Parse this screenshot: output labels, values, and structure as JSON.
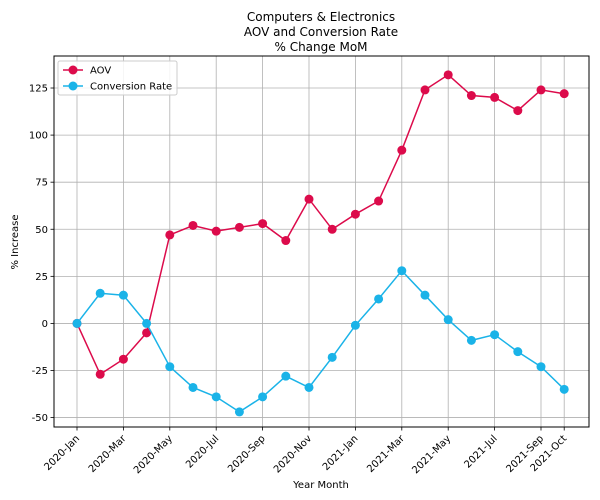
{
  "chart_data": {
    "type": "line",
    "title_lines": [
      "Computers & Electronics",
      "AOV and Conversion Rate",
      "% Change MoM"
    ],
    "xlabel": "Year Month",
    "ylabel": "% Increase",
    "ylim": [
      -55,
      142
    ],
    "yticks": [
      -50,
      -25,
      0,
      25,
      50,
      75,
      100,
      125
    ],
    "grid": true,
    "legend_placement": "top-left",
    "x": [
      "2020-Jan",
      "2020-Feb",
      "2020-Mar",
      "2020-Apr",
      "2020-May",
      "2020-Jun",
      "2020-Jul",
      "2020-Aug",
      "2020-Sep",
      "2020-Oct",
      "2020-Nov",
      "2020-Dec",
      "2021-Jan",
      "2021-Feb",
      "2021-Mar",
      "2021-Apr",
      "2021-May",
      "2021-Jun",
      "2021-Jul",
      "2021-Aug",
      "2021-Sep",
      "2021-Oct"
    ],
    "x_tick_labels": [
      {
        "index": 0,
        "label": "2020-Jan"
      },
      {
        "index": 2,
        "label": "2020-Mar"
      },
      {
        "index": 4,
        "label": "2020-May"
      },
      {
        "index": 6,
        "label": "2020-Jul"
      },
      {
        "index": 8,
        "label": "2020-Sep"
      },
      {
        "index": 10,
        "label": "2020-Nov"
      },
      {
        "index": 12,
        "label": "2021-Jan"
      },
      {
        "index": 14,
        "label": "2021-Mar"
      },
      {
        "index": 16,
        "label": "2021-May"
      },
      {
        "index": 18,
        "label": "2021-Jul"
      },
      {
        "index": 20,
        "label": "2021-Sep"
      },
      {
        "index": 21,
        "label": "2021-Oct"
      }
    ],
    "series": [
      {
        "name": "AOV",
        "color": "#dc0b4b",
        "values": [
          0,
          -27,
          -19,
          -5,
          47,
          52,
          49,
          51,
          53,
          44,
          66,
          50,
          58,
          65,
          92,
          124,
          132,
          121,
          120,
          113,
          124,
          122
        ]
      },
      {
        "name": "Conversion Rate",
        "color": "#1ab3e8",
        "values": [
          0,
          16,
          15,
          0,
          -23,
          -34,
          -39,
          -47,
          -39,
          -28,
          -34,
          -18,
          -1,
          13,
          28,
          15,
          2,
          -9,
          -6,
          -15,
          -23,
          -35
        ]
      }
    ]
  }
}
